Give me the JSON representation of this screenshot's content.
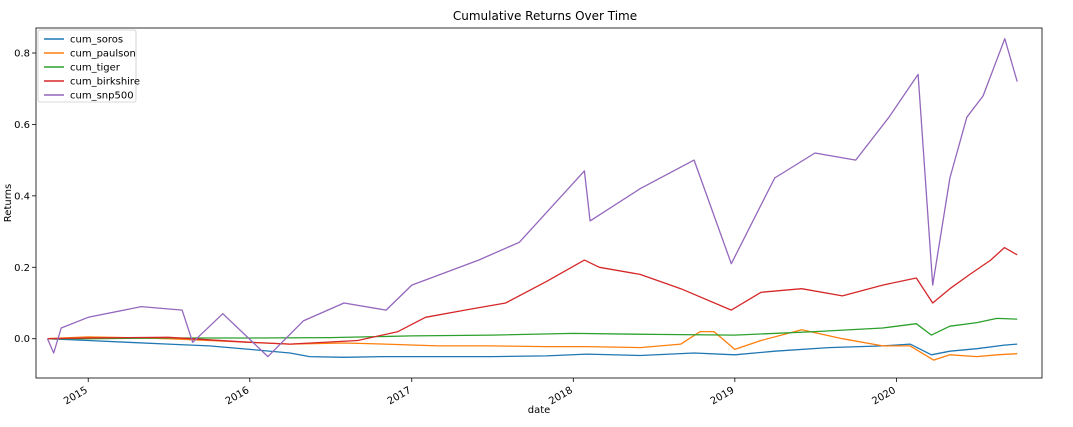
{
  "chart_data": {
    "type": "line",
    "title": "Cumulative Returns Over Time",
    "xlabel": "date",
    "ylabel": "Returns",
    "xlim": [
      "2014-09-05",
      "2020-11-25"
    ],
    "ylim": [
      -0.11,
      0.87
    ],
    "x_ticks": [
      {
        "label": "2015",
        "value": "2015-01-01"
      },
      {
        "label": "2016",
        "value": "2016-01-01"
      },
      {
        "label": "2017",
        "value": "2017-01-01"
      },
      {
        "label": "2018",
        "value": "2018-01-01"
      },
      {
        "label": "2019",
        "value": "2019-01-01"
      },
      {
        "label": "2020",
        "value": "2020-01-01"
      }
    ],
    "y_ticks": [
      {
        "label": "0.0",
        "value": 0.0
      },
      {
        "label": "0.2",
        "value": 0.2
      },
      {
        "label": "0.4",
        "value": 0.4
      },
      {
        "label": "0.6",
        "value": 0.6
      },
      {
        "label": "0.8",
        "value": 0.8
      }
    ],
    "legend_position": "top-left",
    "grid": false,
    "series": [
      {
        "name": "cum_soros",
        "color": "#1f77b4",
        "points": [
          [
            "2014-10-01",
            0.0
          ],
          [
            "2015-01-01",
            -0.005
          ],
          [
            "2015-04-01",
            -0.01
          ],
          [
            "2015-07-01",
            -0.015
          ],
          [
            "2015-10-01",
            -0.02
          ],
          [
            "2016-01-01",
            -0.03
          ],
          [
            "2016-04-01",
            -0.04
          ],
          [
            "2016-05-15",
            -0.05
          ],
          [
            "2016-08-01",
            -0.052
          ],
          [
            "2016-11-01",
            -0.05
          ],
          [
            "2017-03-01",
            -0.05
          ],
          [
            "2017-07-01",
            -0.05
          ],
          [
            "2017-11-01",
            -0.048
          ],
          [
            "2018-02-01",
            -0.043
          ],
          [
            "2018-06-01",
            -0.047
          ],
          [
            "2018-10-01",
            -0.04
          ],
          [
            "2019-01-01",
            -0.045
          ],
          [
            "2019-04-01",
            -0.035
          ],
          [
            "2019-08-01",
            -0.025
          ],
          [
            "2019-12-01",
            -0.02
          ],
          [
            "2020-02-01",
            -0.015
          ],
          [
            "2020-03-20",
            -0.045
          ],
          [
            "2020-05-01",
            -0.035
          ],
          [
            "2020-07-01",
            -0.028
          ],
          [
            "2020-09-01",
            -0.018
          ],
          [
            "2020-09-30",
            -0.015
          ]
        ]
      },
      {
        "name": "cum_paulson",
        "color": "#ff7f0e",
        "points": [
          [
            "2014-10-01",
            0.0
          ],
          [
            "2015-01-01",
            0.005
          ],
          [
            "2015-04-01",
            0.003
          ],
          [
            "2015-07-01",
            0.0
          ],
          [
            "2015-10-01",
            -0.005
          ],
          [
            "2016-01-01",
            -0.01
          ],
          [
            "2016-04-01",
            -0.015
          ],
          [
            "2016-08-01",
            -0.012
          ],
          [
            "2016-11-01",
            -0.015
          ],
          [
            "2017-03-01",
            -0.02
          ],
          [
            "2017-07-01",
            -0.02
          ],
          [
            "2017-11-01",
            -0.022
          ],
          [
            "2018-02-01",
            -0.022
          ],
          [
            "2018-06-01",
            -0.025
          ],
          [
            "2018-09-01",
            -0.015
          ],
          [
            "2018-10-15",
            0.02
          ],
          [
            "2018-11-15",
            0.02
          ],
          [
            "2019-01-01",
            -0.03
          ],
          [
            "2019-03-01",
            -0.005
          ],
          [
            "2019-06-01",
            0.025
          ],
          [
            "2019-09-01",
            0.0
          ],
          [
            "2019-12-01",
            -0.02
          ],
          [
            "2020-02-01",
            -0.02
          ],
          [
            "2020-03-25",
            -0.06
          ],
          [
            "2020-05-01",
            -0.045
          ],
          [
            "2020-07-01",
            -0.05
          ],
          [
            "2020-08-15",
            -0.045
          ],
          [
            "2020-09-30",
            -0.042
          ]
        ]
      },
      {
        "name": "cum_tiger",
        "color": "#2ca02c",
        "points": [
          [
            "2014-10-01",
            0.0
          ],
          [
            "2015-01-01",
            0.0
          ],
          [
            "2015-07-01",
            0.002
          ],
          [
            "2016-01-01",
            0.002
          ],
          [
            "2016-07-01",
            0.003
          ],
          [
            "2017-01-01",
            0.008
          ],
          [
            "2017-07-01",
            0.01
          ],
          [
            "2018-01-01",
            0.015
          ],
          [
            "2018-07-01",
            0.012
          ],
          [
            "2019-01-01",
            0.01
          ],
          [
            "2019-07-01",
            0.02
          ],
          [
            "2019-12-01",
            0.03
          ],
          [
            "2020-02-15",
            0.042
          ],
          [
            "2020-03-20",
            0.01
          ],
          [
            "2020-05-01",
            0.035
          ],
          [
            "2020-07-01",
            0.045
          ],
          [
            "2020-08-15",
            0.057
          ],
          [
            "2020-09-30",
            0.055
          ]
        ]
      },
      {
        "name": "cum_birkshire",
        "color": "#d62728",
        "points": [
          [
            "2014-10-01",
            0.0
          ],
          [
            "2015-01-01",
            0.002
          ],
          [
            "2015-07-01",
            0.004
          ],
          [
            "2016-01-01",
            -0.01
          ],
          [
            "2016-04-01",
            -0.015
          ],
          [
            "2016-09-01",
            -0.005
          ],
          [
            "2016-12-01",
            0.02
          ],
          [
            "2017-02-01",
            0.06
          ],
          [
            "2017-05-01",
            0.08
          ],
          [
            "2017-08-01",
            0.1
          ],
          [
            "2017-11-01",
            0.16
          ],
          [
            "2018-01-26",
            0.22
          ],
          [
            "2018-03-01",
            0.2
          ],
          [
            "2018-06-01",
            0.18
          ],
          [
            "2018-09-01",
            0.14
          ],
          [
            "2018-12-24",
            0.08
          ],
          [
            "2019-03-01",
            0.13
          ],
          [
            "2019-06-01",
            0.14
          ],
          [
            "2019-09-01",
            0.12
          ],
          [
            "2019-12-01",
            0.15
          ],
          [
            "2020-02-15",
            0.17
          ],
          [
            "2020-03-23",
            0.1
          ],
          [
            "2020-05-01",
            0.14
          ],
          [
            "2020-06-15",
            0.18
          ],
          [
            "2020-08-01",
            0.22
          ],
          [
            "2020-09-01",
            0.255
          ],
          [
            "2020-09-30",
            0.235
          ]
        ]
      },
      {
        "name": "cum_snp500",
        "color": "#9467bd",
        "points": [
          [
            "2014-10-01",
            0.0
          ],
          [
            "2014-10-15",
            -0.04
          ],
          [
            "2014-11-01",
            0.03
          ],
          [
            "2015-01-01",
            0.06
          ],
          [
            "2015-05-01",
            0.09
          ],
          [
            "2015-08-01",
            0.08
          ],
          [
            "2015-08-25",
            -0.01
          ],
          [
            "2015-11-01",
            0.07
          ],
          [
            "2016-02-11",
            -0.05
          ],
          [
            "2016-05-01",
            0.05
          ],
          [
            "2016-08-01",
            0.1
          ],
          [
            "2016-11-04",
            0.08
          ],
          [
            "2017-01-01",
            0.15
          ],
          [
            "2017-06-01",
            0.22
          ],
          [
            "2017-09-01",
            0.27
          ],
          [
            "2018-01-26",
            0.47
          ],
          [
            "2018-02-08",
            0.33
          ],
          [
            "2018-06-01",
            0.42
          ],
          [
            "2018-10-01",
            0.5
          ],
          [
            "2018-12-24",
            0.21
          ],
          [
            "2019-04-01",
            0.45
          ],
          [
            "2019-07-01",
            0.52
          ],
          [
            "2019-10-01",
            0.5
          ],
          [
            "2019-12-15",
            0.62
          ],
          [
            "2020-02-19",
            0.74
          ],
          [
            "2020-03-23",
            0.15
          ],
          [
            "2020-05-01",
            0.45
          ],
          [
            "2020-06-08",
            0.62
          ],
          [
            "2020-07-15",
            0.68
          ],
          [
            "2020-09-02",
            0.84
          ],
          [
            "2020-09-30",
            0.72
          ]
        ]
      }
    ]
  }
}
